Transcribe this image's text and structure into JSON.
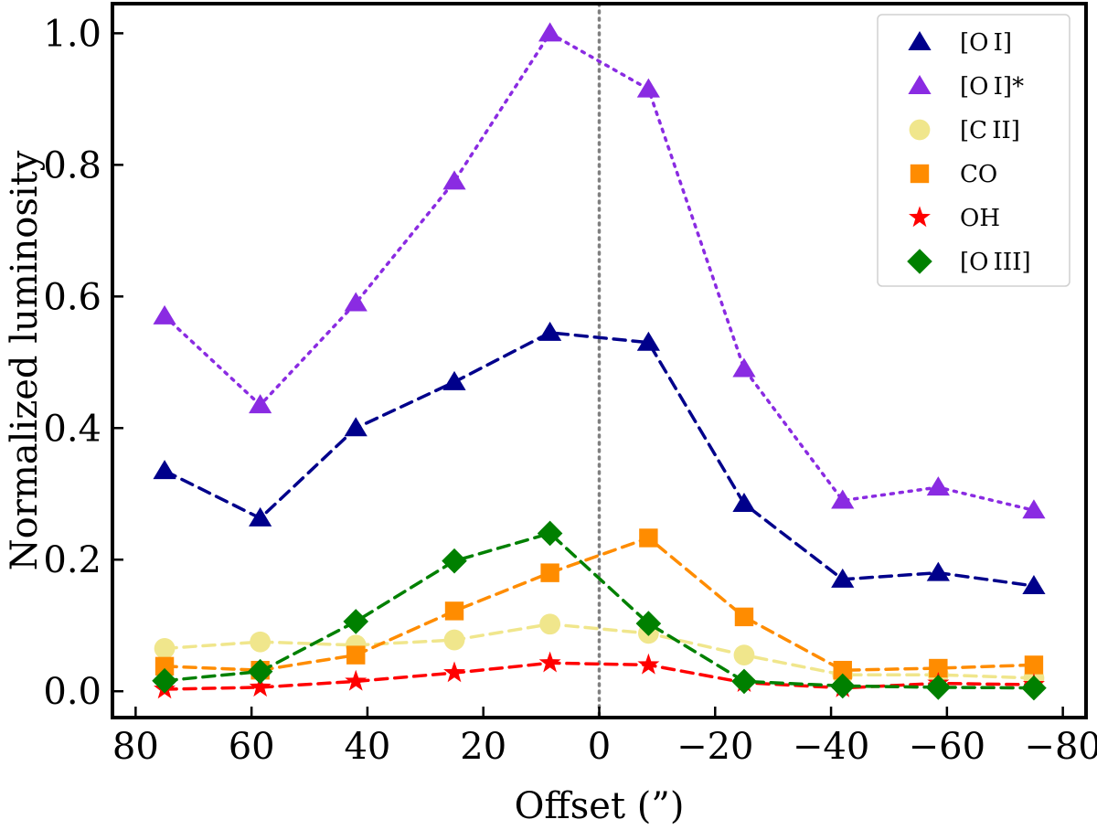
{
  "chart_data": {
    "type": "line",
    "title": "",
    "xlabel": "Offset (”)",
    "ylabel": "Normalized luminosity",
    "xlim": [
      84,
      -84
    ],
    "ylim": [
      -0.04,
      1.045
    ],
    "x_ticks": [
      80,
      60,
      40,
      20,
      0,
      -20,
      -40,
      -60,
      -80
    ],
    "x_tick_labels": [
      "80",
      "60",
      "40",
      "20",
      "0",
      "−20",
      "−40",
      "−60",
      "−80"
    ],
    "y_ticks": [
      0.0,
      0.2,
      0.4,
      0.6,
      0.8,
      1.0
    ],
    "y_tick_labels": [
      "0.0",
      "0.2",
      "0.4",
      "0.6",
      "0.8",
      "1.0"
    ],
    "grid": false,
    "legend_position": "top-right",
    "vertical_line": {
      "x": 0,
      "color": "#808080",
      "style": "dotted"
    },
    "x": [
      75,
      58.5,
      42,
      25,
      8.5,
      -8.5,
      -25,
      -42,
      -58.5,
      -75
    ],
    "series": [
      {
        "name": "[O I]",
        "marker": "triangle",
        "color": "#00008b",
        "line": "dashed",
        "values": [
          0.335,
          0.263,
          0.4,
          0.47,
          0.545,
          0.53,
          0.285,
          0.17,
          0.18,
          0.16
        ]
      },
      {
        "name": "[O I]*",
        "marker": "triangle",
        "color": "#8a2be2",
        "line": "dotted",
        "values": [
          0.57,
          0.435,
          0.59,
          0.775,
          1.0,
          0.915,
          0.49,
          0.29,
          0.31,
          0.275
        ]
      },
      {
        "name": "[C II]",
        "marker": "circle",
        "color": "#f0e68c",
        "line": "dashed",
        "values": [
          0.065,
          0.075,
          0.07,
          0.078,
          0.102,
          0.088,
          0.055,
          0.025,
          0.025,
          0.02
        ]
      },
      {
        "name": "CO",
        "marker": "square",
        "color": "#ff8c00",
        "line": "dashed",
        "values": [
          0.038,
          0.032,
          0.055,
          0.122,
          0.18,
          0.233,
          0.113,
          0.032,
          0.035,
          0.04
        ]
      },
      {
        "name": "OH",
        "marker": "star",
        "color": "#ff0000",
        "line": "dashed",
        "values": [
          0.003,
          0.006,
          0.015,
          0.028,
          0.043,
          0.04,
          0.013,
          0.005,
          0.012,
          0.01
        ]
      },
      {
        "name": "[O III]",
        "marker": "diamond",
        "color": "#008000",
        "line": "dashed",
        "values": [
          0.016,
          0.03,
          0.106,
          0.198,
          0.24,
          0.103,
          0.015,
          0.008,
          0.006,
          0.005
        ]
      }
    ]
  }
}
